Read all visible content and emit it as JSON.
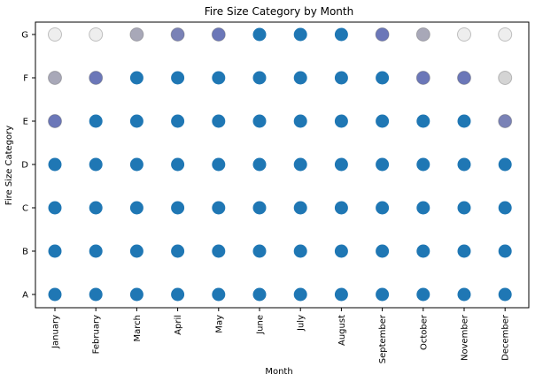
{
  "chart_data": {
    "type": "scatter",
    "title": "Fire Size Category by Month",
    "xlabel": "Month",
    "ylabel": "Fire Size Category",
    "x_categories": [
      "January",
      "February",
      "March",
      "April",
      "May",
      "June",
      "July",
      "August",
      "September",
      "October",
      "November",
      "December"
    ],
    "y_categories": [
      "A",
      "B",
      "C",
      "D",
      "E",
      "F",
      "G"
    ],
    "grid": false,
    "legend": "none",
    "colors": {
      "full": "#1f77b4",
      "dense": "#6b77b8",
      "medium": "#7a82b6",
      "light": "#a8a8b8",
      "faint": "#d4d4d4",
      "very_faint": "#eeeeee",
      "point_edge": "#555555"
    },
    "points": [
      {
        "x": "January",
        "y": "A",
        "shade": "full"
      },
      {
        "x": "January",
        "y": "B",
        "shade": "full"
      },
      {
        "x": "January",
        "y": "C",
        "shade": "full"
      },
      {
        "x": "January",
        "y": "D",
        "shade": "full"
      },
      {
        "x": "January",
        "y": "E",
        "shade": "dense"
      },
      {
        "x": "January",
        "y": "F",
        "shade": "light"
      },
      {
        "x": "January",
        "y": "G",
        "shade": "very_faint"
      },
      {
        "x": "February",
        "y": "A",
        "shade": "full"
      },
      {
        "x": "February",
        "y": "B",
        "shade": "full"
      },
      {
        "x": "February",
        "y": "C",
        "shade": "full"
      },
      {
        "x": "February",
        "y": "D",
        "shade": "full"
      },
      {
        "x": "February",
        "y": "E",
        "shade": "full"
      },
      {
        "x": "February",
        "y": "F",
        "shade": "dense"
      },
      {
        "x": "February",
        "y": "G",
        "shade": "very_faint"
      },
      {
        "x": "March",
        "y": "A",
        "shade": "full"
      },
      {
        "x": "March",
        "y": "B",
        "shade": "full"
      },
      {
        "x": "March",
        "y": "C",
        "shade": "full"
      },
      {
        "x": "March",
        "y": "D",
        "shade": "full"
      },
      {
        "x": "March",
        "y": "E",
        "shade": "full"
      },
      {
        "x": "March",
        "y": "F",
        "shade": "full"
      },
      {
        "x": "March",
        "y": "G",
        "shade": "light"
      },
      {
        "x": "April",
        "y": "A",
        "shade": "full"
      },
      {
        "x": "April",
        "y": "B",
        "shade": "full"
      },
      {
        "x": "April",
        "y": "C",
        "shade": "full"
      },
      {
        "x": "April",
        "y": "D",
        "shade": "full"
      },
      {
        "x": "April",
        "y": "E",
        "shade": "full"
      },
      {
        "x": "April",
        "y": "F",
        "shade": "full"
      },
      {
        "x": "April",
        "y": "G",
        "shade": "medium"
      },
      {
        "x": "May",
        "y": "A",
        "shade": "full"
      },
      {
        "x": "May",
        "y": "B",
        "shade": "full"
      },
      {
        "x": "May",
        "y": "C",
        "shade": "full"
      },
      {
        "x": "May",
        "y": "D",
        "shade": "full"
      },
      {
        "x": "May",
        "y": "E",
        "shade": "full"
      },
      {
        "x": "May",
        "y": "F",
        "shade": "full"
      },
      {
        "x": "May",
        "y": "G",
        "shade": "dense"
      },
      {
        "x": "June",
        "y": "A",
        "shade": "full"
      },
      {
        "x": "June",
        "y": "B",
        "shade": "full"
      },
      {
        "x": "June",
        "y": "C",
        "shade": "full"
      },
      {
        "x": "June",
        "y": "D",
        "shade": "full"
      },
      {
        "x": "June",
        "y": "E",
        "shade": "full"
      },
      {
        "x": "June",
        "y": "F",
        "shade": "full"
      },
      {
        "x": "June",
        "y": "G",
        "shade": "full"
      },
      {
        "x": "July",
        "y": "A",
        "shade": "full"
      },
      {
        "x": "July",
        "y": "B",
        "shade": "full"
      },
      {
        "x": "July",
        "y": "C",
        "shade": "full"
      },
      {
        "x": "July",
        "y": "D",
        "shade": "full"
      },
      {
        "x": "July",
        "y": "E",
        "shade": "full"
      },
      {
        "x": "July",
        "y": "F",
        "shade": "full"
      },
      {
        "x": "July",
        "y": "G",
        "shade": "full"
      },
      {
        "x": "August",
        "y": "A",
        "shade": "full"
      },
      {
        "x": "August",
        "y": "B",
        "shade": "full"
      },
      {
        "x": "August",
        "y": "C",
        "shade": "full"
      },
      {
        "x": "August",
        "y": "D",
        "shade": "full"
      },
      {
        "x": "August",
        "y": "E",
        "shade": "full"
      },
      {
        "x": "August",
        "y": "F",
        "shade": "full"
      },
      {
        "x": "August",
        "y": "G",
        "shade": "full"
      },
      {
        "x": "September",
        "y": "A",
        "shade": "full"
      },
      {
        "x": "September",
        "y": "B",
        "shade": "full"
      },
      {
        "x": "September",
        "y": "C",
        "shade": "full"
      },
      {
        "x": "September",
        "y": "D",
        "shade": "full"
      },
      {
        "x": "September",
        "y": "E",
        "shade": "full"
      },
      {
        "x": "September",
        "y": "F",
        "shade": "full"
      },
      {
        "x": "September",
        "y": "G",
        "shade": "dense"
      },
      {
        "x": "October",
        "y": "A",
        "shade": "full"
      },
      {
        "x": "October",
        "y": "B",
        "shade": "full"
      },
      {
        "x": "October",
        "y": "C",
        "shade": "full"
      },
      {
        "x": "October",
        "y": "D",
        "shade": "full"
      },
      {
        "x": "October",
        "y": "E",
        "shade": "full"
      },
      {
        "x": "October",
        "y": "F",
        "shade": "dense"
      },
      {
        "x": "October",
        "y": "G",
        "shade": "light"
      },
      {
        "x": "November",
        "y": "A",
        "shade": "full"
      },
      {
        "x": "November",
        "y": "B",
        "shade": "full"
      },
      {
        "x": "November",
        "y": "C",
        "shade": "full"
      },
      {
        "x": "November",
        "y": "D",
        "shade": "full"
      },
      {
        "x": "November",
        "y": "E",
        "shade": "full"
      },
      {
        "x": "November",
        "y": "F",
        "shade": "dense"
      },
      {
        "x": "November",
        "y": "G",
        "shade": "very_faint"
      },
      {
        "x": "December",
        "y": "A",
        "shade": "full"
      },
      {
        "x": "December",
        "y": "B",
        "shade": "full"
      },
      {
        "x": "December",
        "y": "C",
        "shade": "full"
      },
      {
        "x": "December",
        "y": "D",
        "shade": "full"
      },
      {
        "x": "December",
        "y": "E",
        "shade": "medium"
      },
      {
        "x": "December",
        "y": "F",
        "shade": "faint"
      },
      {
        "x": "December",
        "y": "G",
        "shade": "very_faint"
      }
    ]
  }
}
